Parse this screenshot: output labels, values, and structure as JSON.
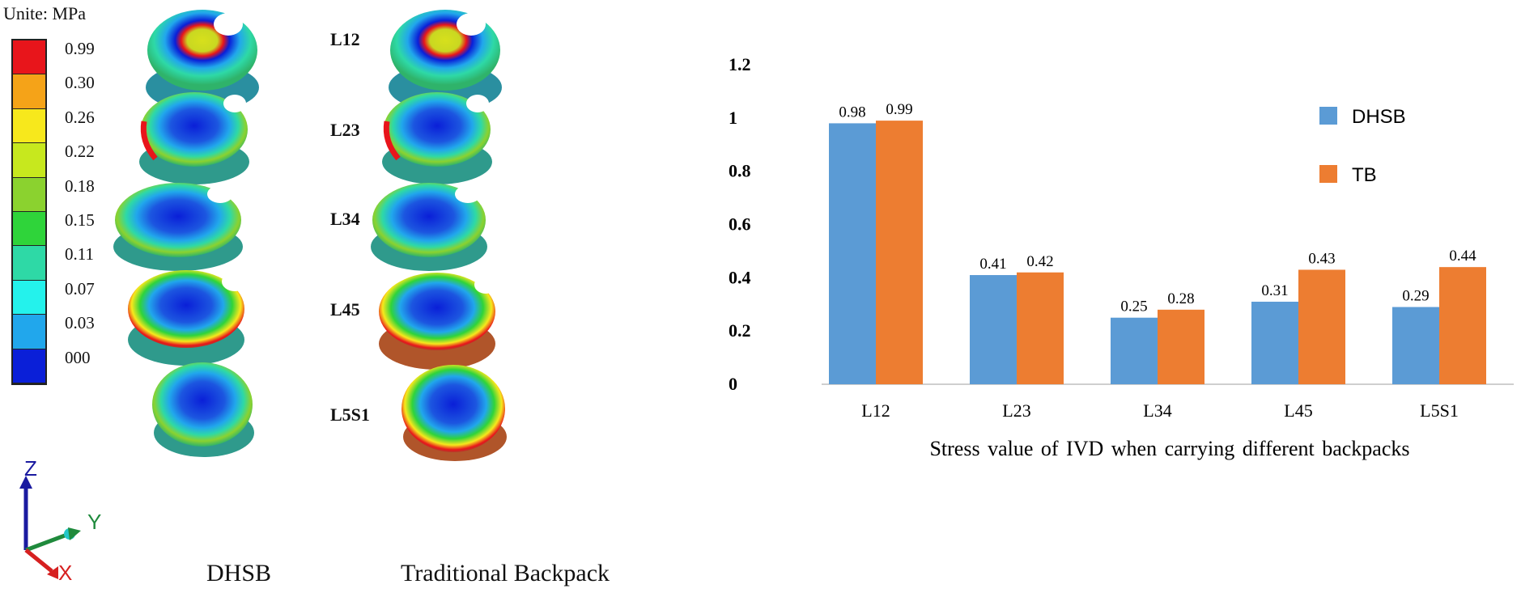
{
  "colorbar": {
    "title": "Unite:  MPa",
    "levels": [
      {
        "label": "0.99",
        "color": "#e8151b"
      },
      {
        "label": "0.30",
        "color": "#f5a318"
      },
      {
        "label": "0.26",
        "color": "#f7e81c"
      },
      {
        "label": "0.22",
        "color": "#c7e81e"
      },
      {
        "label": "0.18",
        "color": "#8bd22f"
      },
      {
        "label": "0.15",
        "color": "#2fd43a"
      },
      {
        "label": "0.11",
        "color": "#2ed9a6"
      },
      {
        "label": "0.07",
        "color": "#24f2ec"
      },
      {
        "label": "0.03",
        "color": "#21a7ec"
      },
      {
        "label": "000",
        "color": "#0a1fd8"
      }
    ]
  },
  "discs": [
    "L12",
    "L23",
    "L34",
    "L45",
    "L5S1"
  ],
  "columns": {
    "left": "DHSB",
    "right": "Traditional Backpack"
  },
  "triad": {
    "z": "Z",
    "y": "Y",
    "x": "X"
  },
  "chart_data": {
    "type": "bar",
    "title": "",
    "xlabel": "Stress value of IVD when carrying different backpacks",
    "ylabel": "",
    "ylim": [
      0,
      1.2
    ],
    "yticks": [
      "0",
      "0.2",
      "0.4",
      "0.6",
      "0.8",
      "1",
      "1.2"
    ],
    "categories": [
      "L12",
      "L23",
      "L34",
      "L45",
      "L5S1"
    ],
    "series": [
      {
        "name": "DHSB",
        "color": "#5b9bd5",
        "values": [
          0.98,
          0.41,
          0.25,
          0.31,
          0.29
        ]
      },
      {
        "name": "TB",
        "color": "#ed7d31",
        "values": [
          0.99,
          0.42,
          0.28,
          0.43,
          0.44
        ]
      }
    ]
  }
}
